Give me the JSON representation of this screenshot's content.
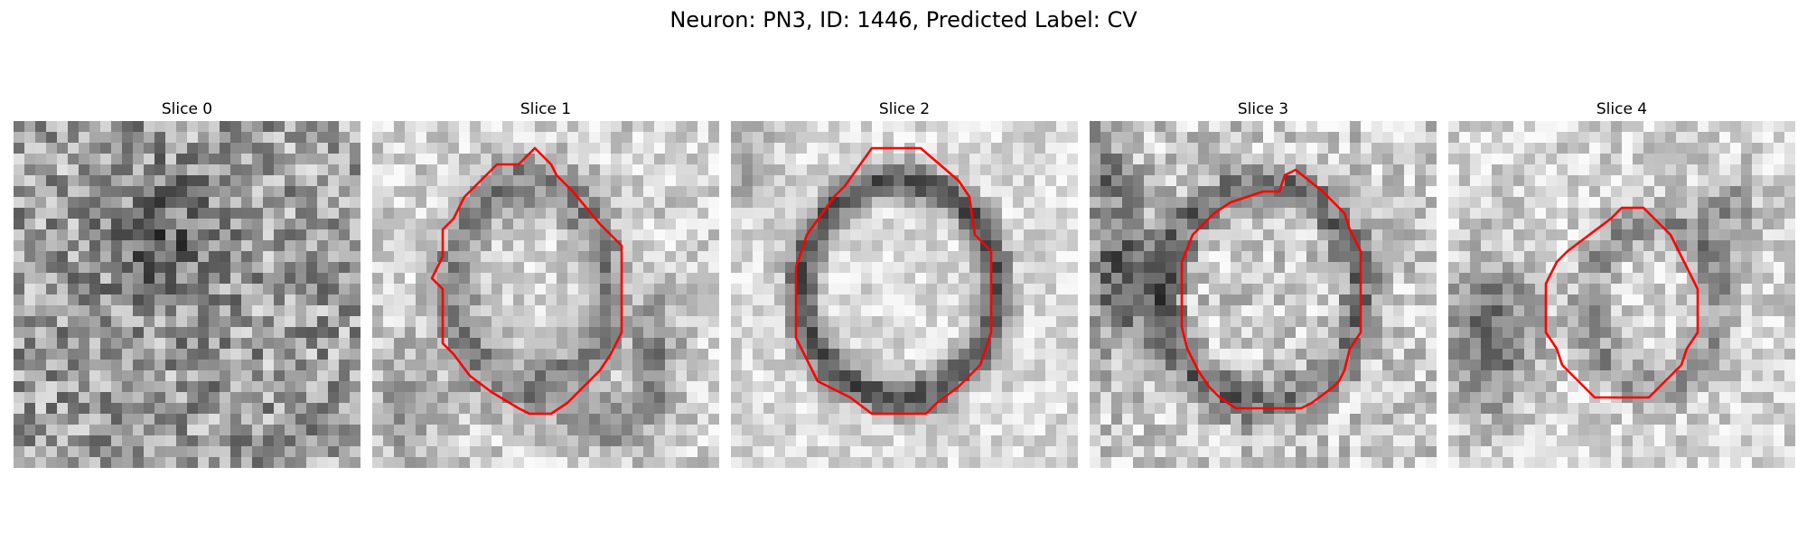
{
  "figure": {
    "title": "Neuron: PN3, ID: 1446, Predicted Label: CV"
  },
  "contour_color": "#ff0000",
  "panels": [
    {
      "title": "Slice 0",
      "has_contour": false
    },
    {
      "title": "Slice 1",
      "has_contour": true
    },
    {
      "title": "Slice 2",
      "has_contour": true
    },
    {
      "title": "Slice 3",
      "has_contour": true
    },
    {
      "title": "Slice 4",
      "has_contour": true
    }
  ]
}
